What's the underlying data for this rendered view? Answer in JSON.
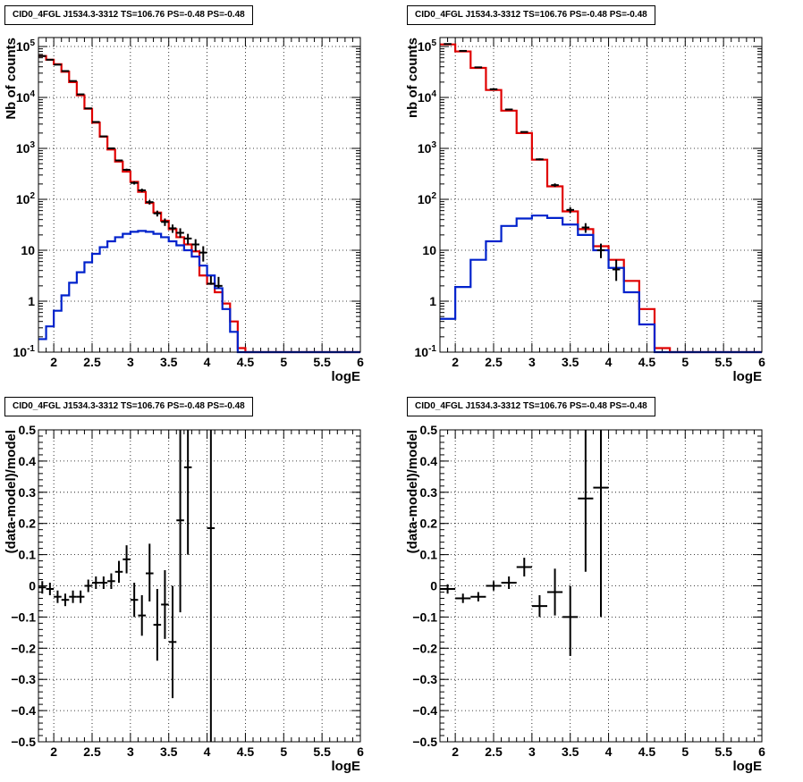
{
  "colors": {
    "data": "#000000",
    "total_model": "#e00000",
    "source_model": "#0022cc",
    "grid": "#000000"
  },
  "panels": [
    {
      "title": "CID0_4FGL J1534.3-3312 TS=106.76 PS=-0.48 PS=-0.48"
    },
    {
      "title": "CID0_4FGL J1534.3-3312 TS=106.76 PS=-0.48 PS=-0.48"
    },
    {
      "title": "CID0_4FGL J1534.3-3312 TS=106.76 PS=-0.48 PS=-0.48"
    },
    {
      "title": "CID0_4FGL J1534.3-3312 TS=106.76 PS=-0.48 PS=-0.48"
    }
  ],
  "chart_data": [
    {
      "type": "line",
      "title": "CID0_4FGL J1534.3-3312 TS=106.76 PS=-0.48 PS=-0.48",
      "xlabel": "logE",
      "ylabel": "Nb of counts",
      "yscale": "log",
      "xlim": [
        1.8,
        6.0
      ],
      "ylim": [
        0.1,
        150000
      ],
      "x_ticks": [
        "2",
        "2.5",
        "3",
        "3.5",
        "4",
        "4.5",
        "5",
        "5.5",
        "6"
      ],
      "y_ticks": [
        "10^-1",
        "1",
        "10",
        "10^2",
        "10^3",
        "10^4",
        "10^5"
      ],
      "grid": true,
      "bin_edges": [
        1.8,
        1.9,
        2.0,
        2.1,
        2.2,
        2.3,
        2.4,
        2.5,
        2.6,
        2.7,
        2.8,
        2.9,
        3.0,
        3.1,
        3.2,
        3.3,
        3.4,
        3.5,
        3.6,
        3.7,
        3.8,
        3.9,
        4.0,
        4.1,
        4.2,
        4.3,
        4.4,
        4.5,
        4.6,
        4.7,
        4.8,
        4.9,
        5.0,
        5.1,
        5.2,
        5.3,
        5.4,
        5.5,
        5.6,
        5.7,
        5.8,
        5.9,
        6.0
      ],
      "series": [
        {
          "kind": "step",
          "color": "#e00000",
          "values": [
            65000,
            55000,
            45000,
            32000,
            20000,
            11000,
            6000,
            3200,
            1700,
            950,
            550,
            350,
            220,
            140,
            85,
            55,
            38,
            26,
            18,
            13,
            9.5,
            3.2,
            2.2,
            1.5,
            0.9,
            0.4,
            0.12,
            0.1,
            0.1,
            0.1,
            0.1,
            0.1,
            0.1,
            0.1,
            0.1,
            0.1,
            0.1,
            0.1,
            0.1,
            0.1,
            0.1,
            0.1
          ]
        },
        {
          "kind": "step",
          "color": "#0022cc",
          "values": [
            0.18,
            0.32,
            0.65,
            1.3,
            2.3,
            3.7,
            5.8,
            8.5,
            11.5,
            15,
            18,
            21,
            23,
            24,
            23,
            21,
            18,
            15,
            12.5,
            10,
            7.5,
            5,
            3.2,
            1.8,
            0.7,
            0.25,
            0.1,
            0.1,
            0.1,
            0.1,
            0.1,
            0.1,
            0.1,
            0.1,
            0.1,
            0.1,
            0.1,
            0.1,
            0.1,
            0.1,
            0.1,
            0.1
          ]
        },
        {
          "kind": "points",
          "color": "#000000",
          "x": [
            1.85,
            1.95,
            2.05,
            2.15,
            2.25,
            2.35,
            2.45,
            2.55,
            2.65,
            2.75,
            2.85,
            2.95,
            3.05,
            3.15,
            3.25,
            3.35,
            3.45,
            3.55,
            3.65,
            3.75,
            3.85,
            3.95,
            4.05,
            4.15
          ],
          "y": [
            65000,
            55000,
            44000,
            33000,
            21000,
            11500,
            6100,
            3300,
            1720,
            1000,
            580,
            380,
            210,
            150,
            88,
            53,
            36,
            27,
            22,
            17,
            13,
            9,
            2.2,
            2.0
          ],
          "err_low": [
            64000,
            54300,
            43600,
            32700,
            20700,
            11300,
            6000,
            3240,
            1680,
            970,
            555,
            360,
            195,
            138,
            79,
            46,
            30,
            22,
            17.5,
            13,
            9.5,
            6,
            2.1,
            1.8
          ],
          "err_high": [
            66000,
            55700,
            44400,
            33300,
            21300,
            11700,
            6200,
            3360,
            1760,
            1030,
            605,
            400,
            225,
            162,
            97,
            60,
            42,
            32,
            27,
            21,
            16.5,
            12,
            3.1,
            3.0
          ]
        }
      ]
    },
    {
      "type": "line",
      "title": "CID0_4FGL J1534.3-3312 TS=106.76 PS=-0.48 PS=-0.48",
      "xlabel": "logE",
      "ylabel": "nb of counts",
      "yscale": "log",
      "xlim": [
        1.8,
        6.0
      ],
      "ylim": [
        0.1,
        150000
      ],
      "x_ticks": [
        "2",
        "2.5",
        "3",
        "3.5",
        "4",
        "4.5",
        "5",
        "5.5",
        "6"
      ],
      "y_ticks": [
        "10^-1",
        "1",
        "10",
        "10^2",
        "10^3",
        "10^4",
        "10^5"
      ],
      "grid": true,
      "bin_edges": [
        1.8,
        2.0,
        2.2,
        2.4,
        2.6,
        2.8,
        3.0,
        3.2,
        3.4,
        3.6,
        3.8,
        4.0,
        4.2,
        4.4,
        4.6,
        4.8,
        5.0,
        5.2,
        5.4,
        5.6,
        5.8,
        6.0
      ],
      "series": [
        {
          "kind": "step",
          "color": "#e00000",
          "values": [
            110000,
            80000,
            38000,
            14000,
            5500,
            2000,
            600,
            180,
            58,
            26,
            12,
            6.5,
            2.5,
            0.7,
            0.12,
            0.1,
            0.1,
            0.1,
            0.1,
            0.1,
            0.1
          ]
        },
        {
          "kind": "step",
          "color": "#0022cc",
          "values": [
            0.45,
            1.9,
            6.5,
            15,
            30,
            42,
            48,
            43,
            32,
            20,
            10,
            4.5,
            1.5,
            0.35,
            0.1,
            0.1,
            0.1,
            0.1,
            0.1,
            0.1,
            0.1
          ]
        },
        {
          "kind": "points",
          "color": "#000000",
          "x": [
            1.9,
            2.1,
            2.3,
            2.5,
            2.7,
            2.9,
            3.1,
            3.3,
            3.5,
            3.7,
            3.9,
            4.1
          ],
          "y": [
            112000,
            82000,
            39000,
            14500,
            5800,
            2100,
            610,
            190,
            62,
            28,
            10,
            4.2
          ],
          "err_low": [
            111500,
            81500,
            38700,
            14300,
            5700,
            2050,
            585,
            175,
            54,
            22,
            7,
            2.5
          ],
          "err_high": [
            112500,
            82500,
            39300,
            14700,
            5900,
            2150,
            635,
            205,
            70,
            34,
            13.5,
            6.5
          ]
        }
      ]
    },
    {
      "type": "scatter",
      "title": "CID0_4FGL J1534.3-3312 TS=106.76 PS=-0.48 PS=-0.48",
      "xlabel": "logE",
      "ylabel": "(data-model)/model",
      "xlim": [
        1.8,
        6.0
      ],
      "ylim": [
        -0.5,
        0.5
      ],
      "x_ticks": [
        "2",
        "2.5",
        "3",
        "3.5",
        "4",
        "4.5",
        "5",
        "5.5",
        "6"
      ],
      "y_ticks": [
        "−0.5",
        "−0.4",
        "−0.3",
        "−0.2",
        "−0.1",
        "0",
        "0.1",
        "0.2",
        "0.3",
        "0.4",
        "0.5"
      ],
      "grid": true,
      "series": [
        {
          "kind": "points",
          "color": "#000000",
          "xerr": 0.05,
          "x": [
            1.85,
            1.95,
            2.05,
            2.15,
            2.25,
            2.35,
            2.45,
            2.55,
            2.65,
            2.75,
            2.85,
            2.95,
            3.05,
            3.15,
            3.25,
            3.35,
            3.45,
            3.55,
            3.65,
            3.75,
            4.05
          ],
          "y": [
            -0.005,
            -0.01,
            -0.035,
            -0.045,
            -0.035,
            -0.035,
            0.0,
            0.01,
            0.01,
            0.015,
            0.045,
            0.085,
            -0.045,
            -0.095,
            0.04,
            -0.125,
            -0.06,
            -0.18,
            0.21,
            0.38,
            0.185
          ],
          "err_low": [
            -0.025,
            -0.03,
            -0.055,
            -0.065,
            -0.055,
            -0.055,
            -0.02,
            -0.01,
            -0.01,
            -0.01,
            0.01,
            0.04,
            -0.1,
            -0.16,
            -0.05,
            -0.24,
            -0.17,
            -0.36,
            -0.085,
            0.1,
            -0.5
          ],
          "err_high": [
            0.015,
            0.01,
            -0.015,
            -0.025,
            -0.015,
            -0.015,
            0.02,
            0.03,
            0.03,
            0.04,
            0.08,
            0.13,
            0.01,
            -0.03,
            0.135,
            -0.01,
            0.05,
            0.0,
            0.5,
            0.5,
            0.5
          ]
        }
      ]
    },
    {
      "type": "scatter",
      "title": "CID0_4FGL J1534.3-3312 TS=106.76 PS=-0.48 PS=-0.48",
      "xlabel": "logE",
      "ylabel": "(data-model)/model",
      "xlim": [
        1.8,
        6.0
      ],
      "ylim": [
        -0.5,
        0.5
      ],
      "x_ticks": [
        "2",
        "2.5",
        "3",
        "3.5",
        "4",
        "4.5",
        "5",
        "5.5",
        "6"
      ],
      "y_ticks": [
        "−0.5",
        "−0.4",
        "−0.3",
        "−0.2",
        "−0.1",
        "0",
        "0.1",
        "0.2",
        "0.3",
        "0.4",
        "0.5"
      ],
      "grid": true,
      "series": [
        {
          "kind": "points",
          "color": "#000000",
          "xerr": 0.1,
          "x": [
            1.9,
            2.1,
            2.3,
            2.5,
            2.7,
            2.9,
            3.1,
            3.3,
            3.5,
            3.7,
            3.9
          ],
          "y": [
            -0.01,
            -0.04,
            -0.035,
            0.0,
            0.01,
            0.06,
            -0.065,
            -0.02,
            -0.1,
            0.28,
            0.315
          ],
          "err_low": [
            -0.025,
            -0.055,
            -0.05,
            -0.015,
            -0.01,
            0.03,
            -0.1,
            -0.095,
            -0.225,
            0.045,
            -0.1
          ],
          "err_high": [
            0.005,
            -0.025,
            -0.02,
            0.015,
            0.03,
            0.09,
            -0.03,
            0.055,
            0.0,
            0.5,
            0.5
          ]
        }
      ]
    }
  ]
}
